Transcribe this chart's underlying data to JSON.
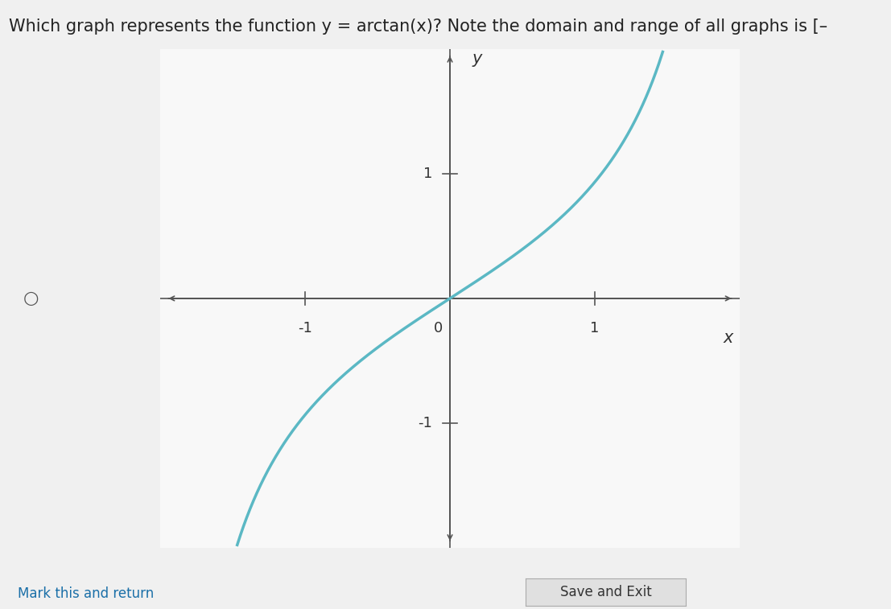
{
  "title": "Which graph represents the function y = arctan(x)? Note the domain and range of all graphs is [–",
  "title_fontsize": 15,
  "curve_color": "#5bb8c4",
  "curve_linewidth": 2.5,
  "background_color": "#f0f0f0",
  "plot_bg_color": "#f8f8f8",
  "axis_color": "#555555",
  "grid_color": "#cccccc",
  "xlabel": "x",
  "ylabel": "y",
  "xlim": [
    -2.0,
    2.0
  ],
  "ylim": [
    -2.0,
    2.0
  ],
  "xticks": [
    -1,
    0,
    1
  ],
  "yticks": [
    -1,
    1
  ],
  "tick_fontsize": 13,
  "label_fontsize": 15,
  "x_scale": 0.75,
  "bottom_left_text": "Mark this and return",
  "bottom_center_text": "Save and Exit"
}
